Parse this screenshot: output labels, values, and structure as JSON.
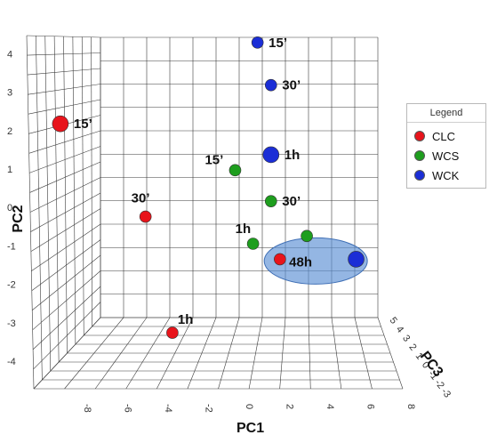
{
  "chart_data": {
    "type": "scatter",
    "subtype": "3d-pca",
    "title": "",
    "xlabel": "PC1",
    "ylabel": "PC2",
    "zlabel": "PC3",
    "xlim": [
      -8,
      8
    ],
    "ylim": [
      -4,
      4
    ],
    "zlim": [
      -3,
      5
    ],
    "x_ticks": [
      "-8",
      "-6",
      "-4",
      "-2",
      "0",
      "2",
      "4",
      "6",
      "8"
    ],
    "y_ticks": [
      "-4",
      "-3",
      "-2",
      "-1",
      "0",
      "1",
      "2",
      "3",
      "4"
    ],
    "z_ticks": [
      "-3",
      "-2",
      "-1",
      "0",
      "1",
      "2",
      "3",
      "4",
      "5"
    ],
    "grid": true,
    "legend": {
      "title": "Legend",
      "position": "right"
    },
    "series": [
      {
        "name": "CLC",
        "color": "#e8141b",
        "points": [
          {
            "label": "15’",
            "x": -8.0,
            "y": 2.1,
            "z": 0,
            "size": "large"
          },
          {
            "label": "30’",
            "x": -4.2,
            "y": -0.3,
            "z": 0,
            "size": "small"
          },
          {
            "label": "1h",
            "x": -3.0,
            "y": -3.3,
            "z": 0,
            "size": "small"
          },
          {
            "label": "",
            "x": 1.8,
            "y": -1.4,
            "z": 0,
            "size": "small"
          }
        ]
      },
      {
        "name": "WCS",
        "color": "#1e9e1e",
        "points": [
          {
            "label": "15’",
            "x": -0.2,
            "y": 0.9,
            "z": 0,
            "size": "small"
          },
          {
            "label": "30’",
            "x": 1.4,
            "y": 0.1,
            "z": 0,
            "size": "small"
          },
          {
            "label": "1h",
            "x": 0.6,
            "y": -1.0,
            "z": 0,
            "size": "small"
          },
          {
            "label": "",
            "x": 3.0,
            "y": -0.8,
            "z": 0,
            "size": "small"
          }
        ]
      },
      {
        "name": "WCK",
        "color": "#1b2ed6",
        "points": [
          {
            "label": "15’",
            "x": 0.8,
            "y": 4.2,
            "z": 0,
            "size": "small"
          },
          {
            "label": "30’",
            "x": 1.4,
            "y": 3.1,
            "z": 0,
            "size": "small"
          },
          {
            "label": "1h",
            "x": 1.4,
            "y": 1.3,
            "z": 0,
            "size": "large"
          },
          {
            "label": "",
            "x": 5.2,
            "y": -1.4,
            "z": 0,
            "size": "large"
          }
        ]
      }
    ],
    "annotations": [
      {
        "label": "48h",
        "shape": "ellipse",
        "x": 3.4,
        "y": -1.4,
        "color": "#5b8fd4"
      }
    ]
  }
}
